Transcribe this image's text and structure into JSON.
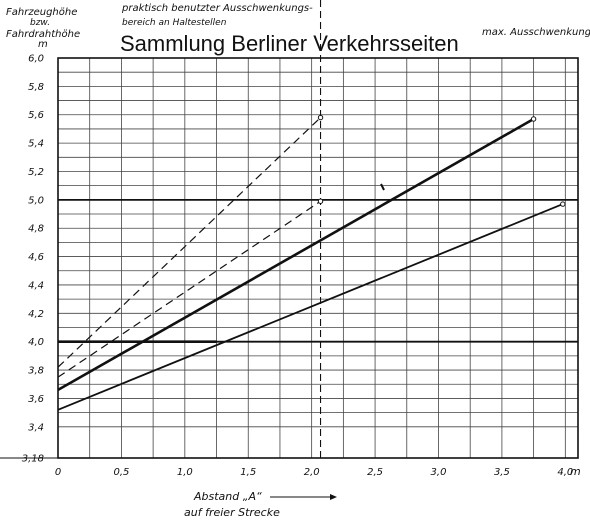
{
  "watermark": "Sammlung Berliner Verkehrsseiten",
  "chart_data": {
    "type": "line",
    "ylabel_lines": [
      "Fahrzeughöhe",
      "bzw.",
      "Fahrdrahthöhe",
      "m"
    ],
    "xlabel_lines": [
      "Abstand „A“",
      "auf freier Strecke"
    ],
    "x_unit": "m",
    "annotation_top": [
      "praktisch benutzter Ausschwenkungs-",
      "bereich an Haltestellen"
    ],
    "annotation_right": "max. Ausschwenkung",
    "xlim": [
      0,
      4.1
    ],
    "ylim": [
      3.18,
      6.0
    ],
    "x_ticks": [
      0,
      0.5,
      1.0,
      1.5,
      2.0,
      2.5,
      3.0,
      3.5,
      4.0
    ],
    "x_tick_labels": [
      "0",
      "0,5",
      "1,0",
      "1,5",
      "2,0",
      "2,5",
      "3,0",
      "3,5",
      "4,0"
    ],
    "y_ticks": [
      3.18,
      3.4,
      3.6,
      3.8,
      4.0,
      4.2,
      4.4,
      4.6,
      4.8,
      5.0,
      5.2,
      5.4,
      5.6,
      5.8,
      6.0
    ],
    "y_tick_labels": [
      "3,18",
      "3,4",
      "3,6",
      "3,8",
      "4,0",
      "4,2",
      "4,4",
      "4,6",
      "4,8",
      "5,0",
      "5,2",
      "5,4",
      "5,6",
      "5,8",
      "6,0"
    ],
    "grid": true,
    "series": [
      {
        "style": "solid-heavy",
        "points": [
          [
            0,
            4.0
          ],
          [
            1.25,
            4.0
          ]
        ]
      },
      {
        "style": "solid-heavy",
        "points": [
          [
            0,
            3.66
          ],
          [
            3.75,
            5.57
          ]
        ]
      },
      {
        "style": "solid",
        "points": [
          [
            0,
            3.52
          ],
          [
            3.98,
            4.97
          ]
        ]
      },
      {
        "style": "dashed",
        "points": [
          [
            0,
            3.82
          ],
          [
            2.07,
            5.58
          ]
        ]
      },
      {
        "style": "dashed",
        "points": [
          [
            0,
            3.75
          ],
          [
            2.07,
            4.99
          ]
        ]
      }
    ],
    "reference_lines": [
      {
        "axis": "x",
        "value": 2.07,
        "style": "dashed"
      },
      {
        "axis": "y",
        "value": 5.0,
        "style": "solid-heavy"
      },
      {
        "axis": "y",
        "value": 4.0,
        "style": "solid-heavy"
      }
    ]
  }
}
